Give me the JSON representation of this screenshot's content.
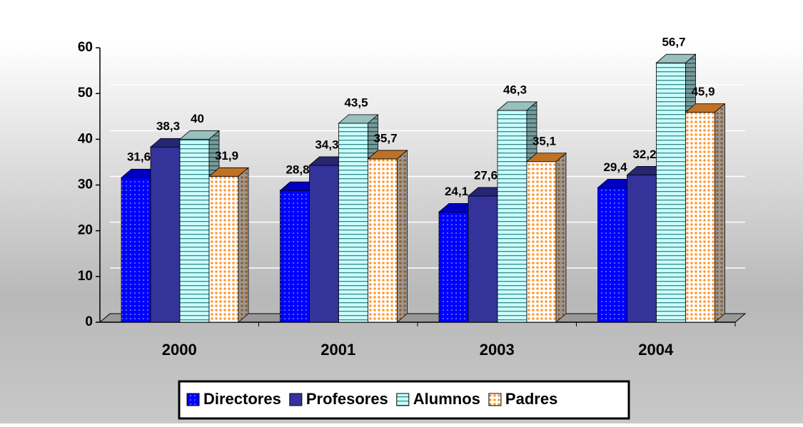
{
  "chart_data": {
    "type": "bar3d",
    "categories": [
      "2000",
      "2001",
      "2003",
      "2004"
    ],
    "series": [
      {
        "name": "Directores",
        "color": "#0000ff",
        "values": [
          31.6,
          28.8,
          24.1,
          29.4
        ],
        "value_labels": [
          "31,6",
          "28,8",
          "24,1",
          "29,4"
        ]
      },
      {
        "name": "Profesores",
        "color": "#333399",
        "values": [
          38.3,
          34.3,
          27.6,
          32.2
        ],
        "value_labels": [
          "38,3",
          "34,3",
          "27,6",
          "32,2"
        ]
      },
      {
        "name": "Alumnos",
        "color": "#ccffff",
        "values": [
          40,
          43.5,
          46.3,
          56.7
        ],
        "value_labels": [
          "40",
          "43,5",
          "46,3",
          "56,7"
        ]
      },
      {
        "name": "Padres",
        "color": "#ff9933",
        "values": [
          31.9,
          35.7,
          35.1,
          45.9
        ],
        "value_labels": [
          "31,9",
          "35,7",
          "35,1",
          "45,9"
        ]
      }
    ],
    "ylim": [
      0,
      60
    ],
    "yticks": [
      0,
      10,
      20,
      30,
      40,
      50,
      60
    ],
    "grid": true,
    "legend": "bottom"
  }
}
